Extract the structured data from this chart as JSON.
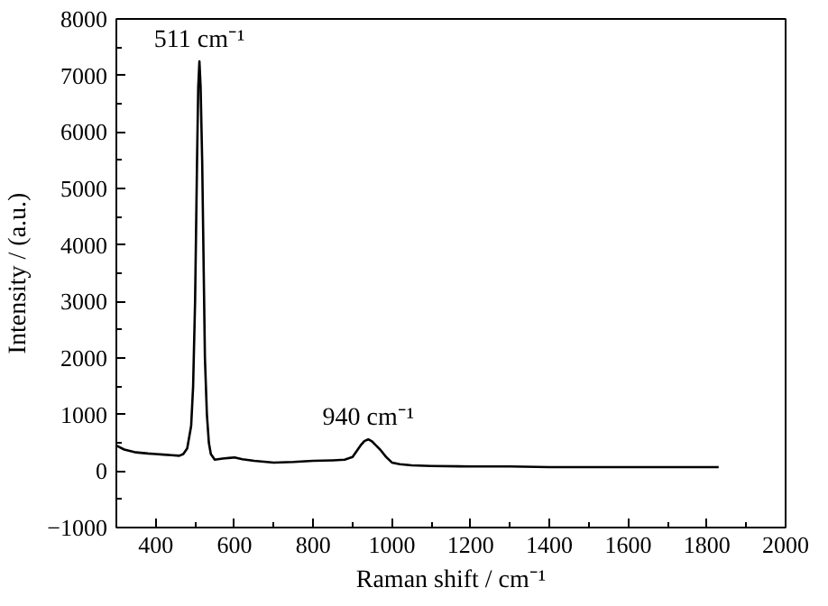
{
  "chart_data": {
    "type": "line",
    "xlabel": "Raman shift / cm⁻¹",
    "ylabel": "Intensity / (a.u.)",
    "x": [
      300,
      320,
      350,
      380,
      400,
      420,
      440,
      460,
      470,
      480,
      490,
      495,
      500,
      505,
      508,
      511,
      514,
      518,
      522,
      525,
      530,
      535,
      540,
      550,
      570,
      600,
      620,
      650,
      700,
      750,
      800,
      850,
      880,
      900,
      910,
      920,
      930,
      940,
      950,
      960,
      970,
      985,
      1000,
      1020,
      1050,
      1100,
      1200,
      1300,
      1400,
      1500,
      1600,
      1700,
      1830
    ],
    "series": [
      {
        "color": "#000000",
        "values": [
          450,
          380,
          330,
          310,
          300,
          290,
          280,
          270,
          300,
          400,
          800,
          1500,
          3000,
          5500,
          6800,
          7250,
          6800,
          5500,
          3500,
          2000,
          1000,
          500,
          300,
          200,
          220,
          240,
          210,
          180,
          150,
          160,
          180,
          190,
          200,
          250,
          350,
          450,
          530,
          560,
          520,
          450,
          380,
          250,
          150,
          120,
          100,
          90,
          80,
          80,
          70,
          70,
          70,
          70,
          70
        ]
      }
    ],
    "xlim": [
      300,
      2000
    ],
    "ylim": [
      -1000,
      8000
    ],
    "xticks": [
      400,
      600,
      800,
      1000,
      1200,
      1400,
      1600,
      1800,
      2000
    ],
    "yticks": [
      -1000,
      0,
      1000,
      2000,
      3000,
      4000,
      5000,
      6000,
      7000,
      8000
    ],
    "annotations": [
      {
        "text": "511 cm⁻¹",
        "x": 511,
        "y": 7250
      },
      {
        "text": "940 cm⁻¹",
        "x": 940,
        "y": 560
      }
    ],
    "grid": false,
    "marker": "none",
    "line_style": "solid"
  }
}
